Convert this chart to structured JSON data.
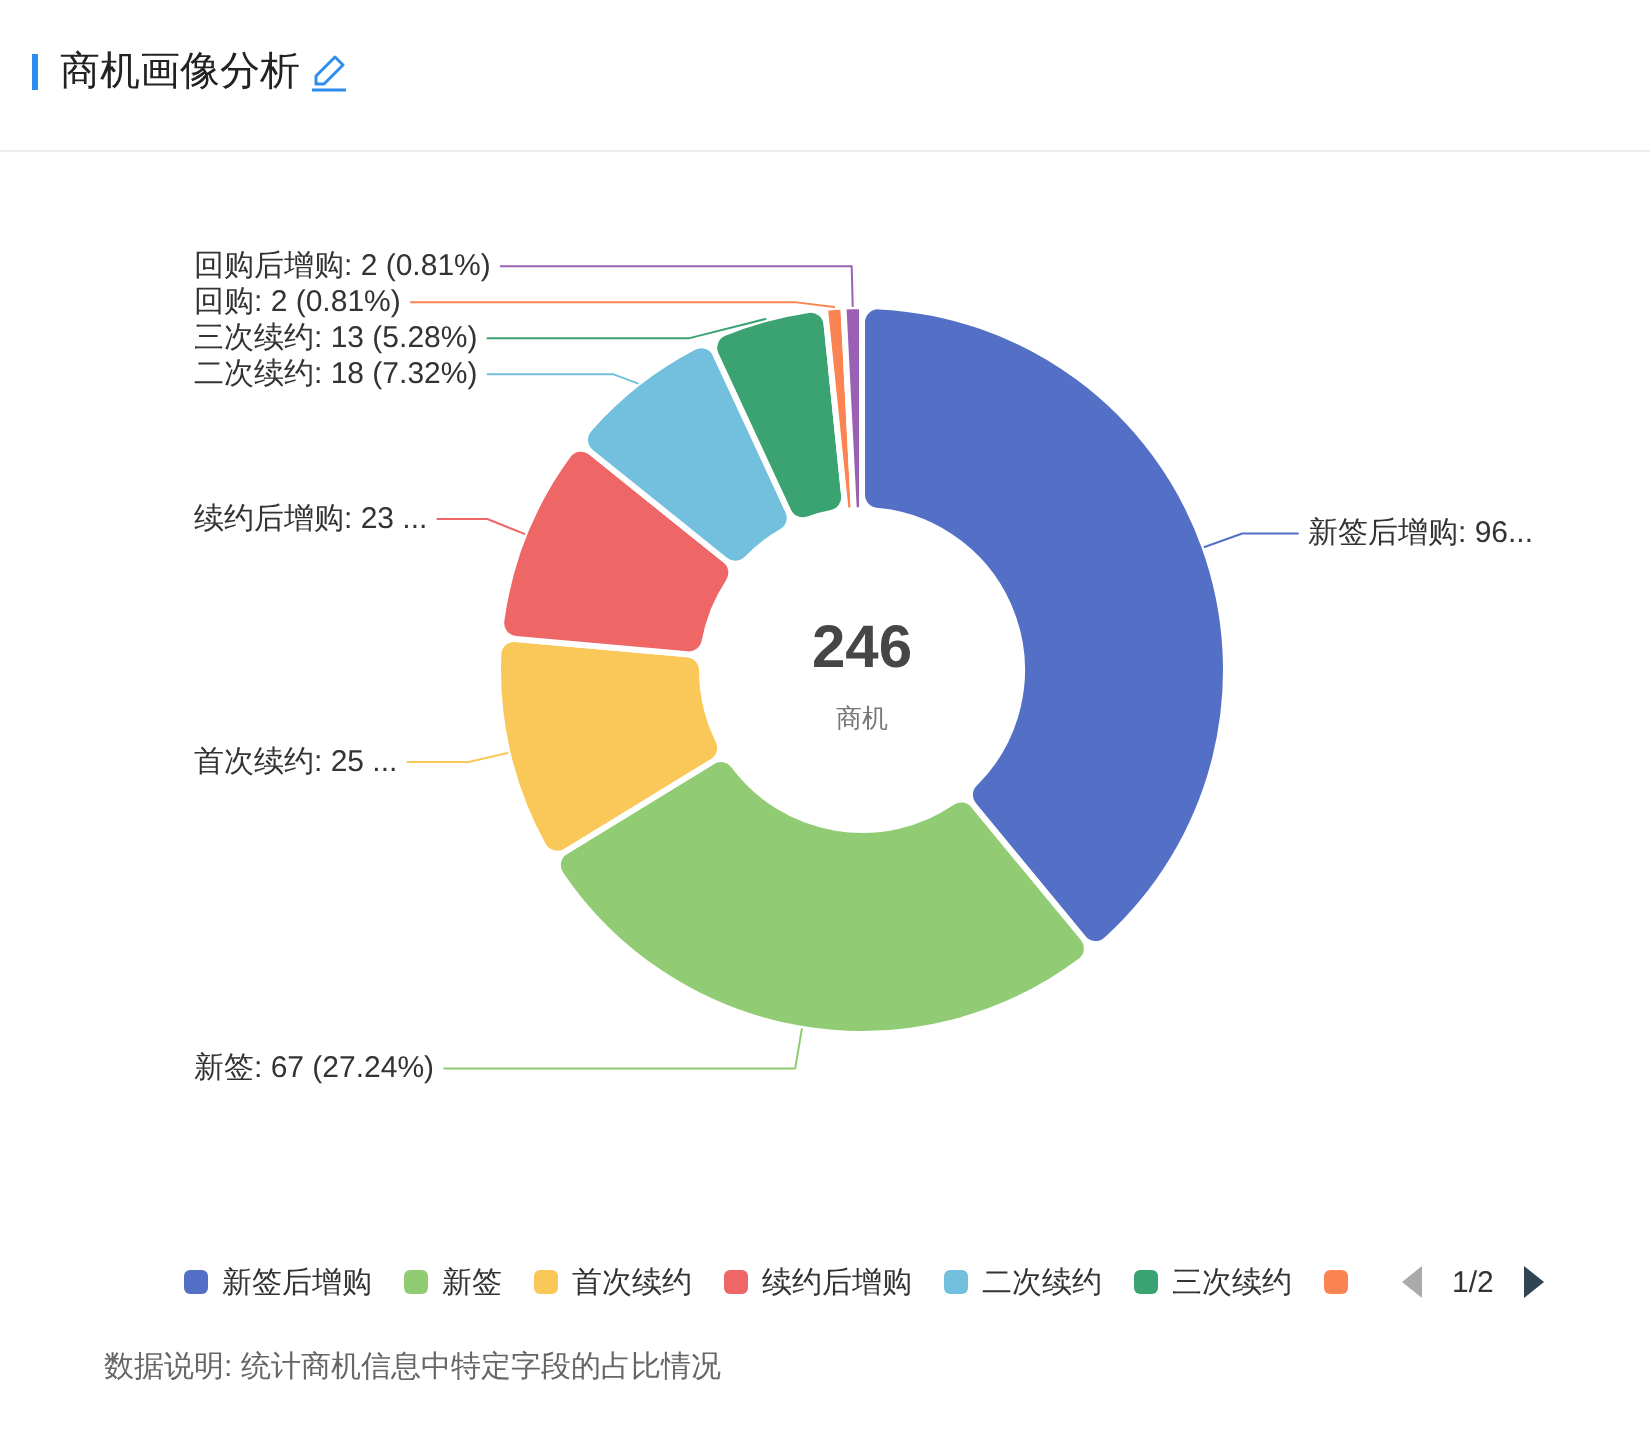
{
  "chart_data": {
    "type": "donut",
    "title": "商机画像分析",
    "categories": [
      "新签后增购",
      "新签",
      "首次续约",
      "续约后增购",
      "二次续约",
      "三次续约",
      "回购",
      "回购后增购"
    ],
    "values": [
      96,
      67,
      25,
      23,
      18,
      13,
      2,
      2
    ],
    "colors": [
      "#5470c6",
      "#91cc75",
      "#fac858",
      "#ee6666",
      "#73c0de",
      "#3ba272",
      "#fc8452",
      "#9a60b4"
    ],
    "value_labels": [
      ": 96...",
      ": 67 (27.24%)",
      ": 25 ...",
      ": 23 ...",
      ": 18 (7.32%)",
      ": 13 (5.28%)",
      ": 2 (0.81%)",
      ": 2 (0.81%)"
    ],
    "legend": "bottom",
    "annotations": [
      "246",
      "商机",
      "1/2",
      "数据说明: 统计商机信息中特定字段的占比情况"
    ]
  }
}
